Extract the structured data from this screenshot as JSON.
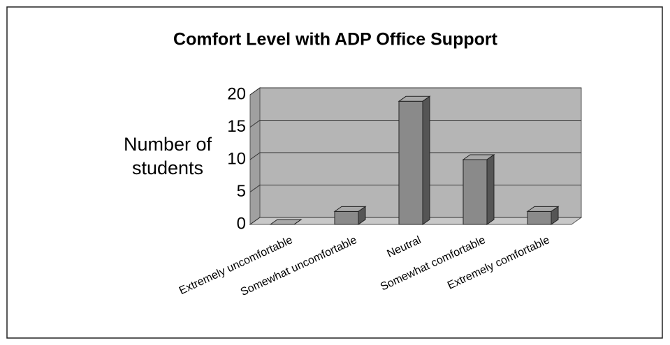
{
  "chart_data": {
    "type": "bar",
    "title": "Comfort Level with ADP Office Support",
    "y_label": "Number of students",
    "categories": [
      "Extremely uncomfortable",
      "Somewhat uncomfortable",
      "Neutral",
      "Somewhat comfortable",
      "Extremely comfortable"
    ],
    "values": [
      0,
      2,
      19,
      10,
      2
    ],
    "color": "#8a8a8a",
    "ylim": [
      0,
      20
    ],
    "yticks": [
      0,
      5,
      10,
      15,
      20
    ],
    "grid": true
  }
}
